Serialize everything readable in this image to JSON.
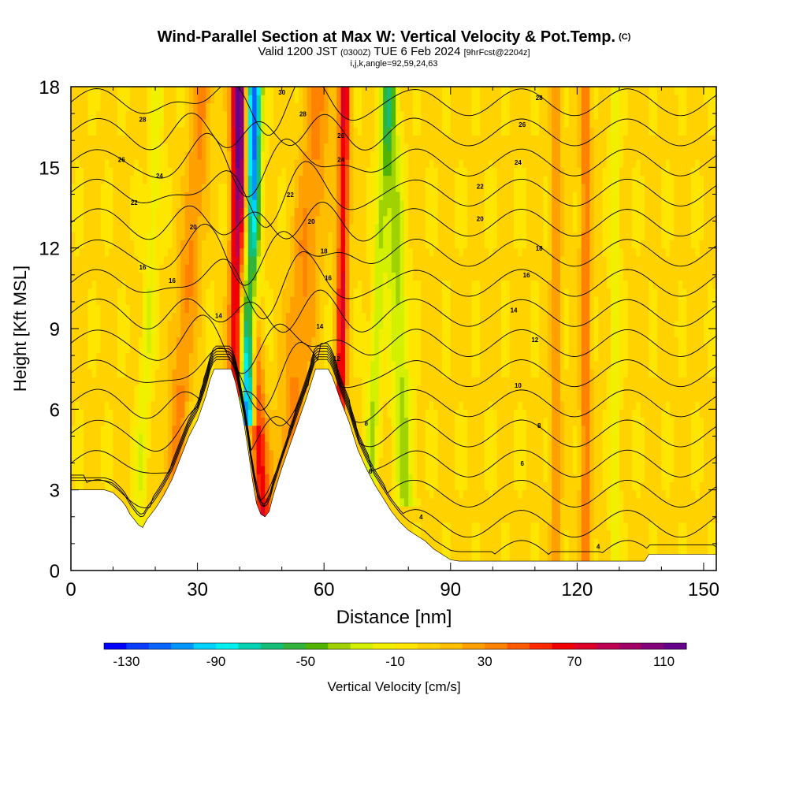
{
  "header": {
    "title": "Wind-Parallel Section at Max W: Vertical Velocity & Pot.Temp.",
    "title_mark": "(C)",
    "valid_prefix": "Valid 1200 JST",
    "valid_utc": "(0300Z)",
    "valid_date": "TUE 6 Feb 2024",
    "forecast": "[9hrFcst@2204z]",
    "indices": "i,j,k,angle=92,59,24,63"
  },
  "chart_data": {
    "type": "heatmap",
    "xlabel": "Distance [nm]",
    "ylabel": "Height [Kft MSL]",
    "xlim": [
      0,
      153
    ],
    "ylim": [
      0,
      18
    ],
    "xticks": [
      "0",
      "30",
      "60",
      "90",
      "120",
      "150"
    ],
    "yticks": [
      "0",
      "3",
      "6",
      "9",
      "12",
      "15",
      "18"
    ],
    "colorbar": {
      "label": "Vertical Velocity [cm/s]",
      "range": [
        -140,
        120
      ],
      "step": 10,
      "tick_labels": [
        "-130",
        "-90",
        "-50",
        "-10",
        "30",
        "70",
        "110"
      ],
      "colors": [
        "#0000ff",
        "#0a3cff",
        "#0a64ff",
        "#0096ff",
        "#00d2ff",
        "#00f0f0",
        "#00d2b4",
        "#14be78",
        "#32b43c",
        "#50b400",
        "#a0d200",
        "#d2f000",
        "#f0f000",
        "#ffe600",
        "#ffd200",
        "#ffbe00",
        "#ffa000",
        "#ff8200",
        "#ff5a00",
        "#ff2800",
        "#f00000",
        "#dc0028",
        "#be0050",
        "#a00064",
        "#820078",
        "#64008c"
      ]
    },
    "terrain_kft": [
      [
        0,
        3.0
      ],
      [
        8,
        3.0
      ],
      [
        10,
        2.9
      ],
      [
        12,
        2.6
      ],
      [
        13,
        2.4
      ],
      [
        14,
        2.1
      ],
      [
        15,
        1.9
      ],
      [
        16,
        1.7
      ],
      [
        17,
        1.6
      ],
      [
        18,
        1.9
      ],
      [
        20,
        2.3
      ],
      [
        22,
        2.8
      ],
      [
        24,
        3.4
      ],
      [
        26,
        4.2
      ],
      [
        28,
        5.0
      ],
      [
        30,
        5.6
      ],
      [
        32,
        6.5
      ],
      [
        33,
        7.1
      ],
      [
        34,
        7.5
      ],
      [
        38,
        7.5
      ],
      [
        39,
        7.0
      ],
      [
        40,
        6.3
      ],
      [
        41,
        5.5
      ],
      [
        42,
        4.5
      ],
      [
        43,
        3.4
      ],
      [
        44,
        2.5
      ],
      [
        45,
        2.1
      ],
      [
        46,
        2.0
      ],
      [
        47,
        2.2
      ],
      [
        48,
        2.8
      ],
      [
        50,
        3.8
      ],
      [
        52,
        4.7
      ],
      [
        54,
        5.6
      ],
      [
        56,
        6.5
      ],
      [
        57,
        7.0
      ],
      [
        58,
        7.5
      ],
      [
        61,
        7.5
      ],
      [
        62,
        7.2
      ],
      [
        64,
        6.3
      ],
      [
        66,
        5.5
      ],
      [
        68,
        4.5
      ],
      [
        70,
        3.8
      ],
      [
        72,
        3.2
      ],
      [
        74,
        2.7
      ],
      [
        76,
        2.2
      ],
      [
        78,
        1.8
      ],
      [
        80,
        1.5
      ],
      [
        82,
        1.3
      ],
      [
        84,
        1.1
      ],
      [
        86,
        0.8
      ],
      [
        88,
        0.6
      ],
      [
        90,
        0.4
      ],
      [
        92,
        0.35
      ],
      [
        104,
        0.35
      ],
      [
        116,
        0.35
      ],
      [
        128,
        0.35
      ],
      [
        136,
        0.35
      ],
      [
        137,
        0.6
      ],
      [
        153,
        0.6
      ]
    ],
    "updraft_bands": [
      {
        "x": 39,
        "slope": 0.06,
        "width": 1.6,
        "value": 75,
        "base_kft": 7.0
      },
      {
        "x": 45.5,
        "slope": -0.35,
        "width": 1.8,
        "value": 65,
        "base_kft": 2.0
      },
      {
        "x": 64,
        "slope": 0.09,
        "width": 1.3,
        "value": 68,
        "base_kft": 7.0
      },
      {
        "x": 51,
        "slope": 0.55,
        "width": 3.5,
        "value": 30,
        "base_kft": 3.0
      },
      {
        "x": 24,
        "slope": 0.5,
        "width": 2.5,
        "value": 30,
        "base_kft": 3.0
      },
      {
        "x": 122,
        "slope": 0.0,
        "width": 1.4,
        "value": 35,
        "base_kft": 0.4
      },
      {
        "x": 115,
        "slope": 0.0,
        "width": 1.2,
        "value": 28,
        "base_kft": 0.4
      }
    ],
    "downdraft_bands": [
      {
        "x": 42,
        "slope": 0.13,
        "width": 1.8,
        "value": -125,
        "base_kft": 7.0
      },
      {
        "x": 79,
        "slope": -0.25,
        "width": 2.2,
        "value": -35,
        "base_kft": 4.0
      },
      {
        "x": 71,
        "slope": 0.3,
        "width": 1.6,
        "value": -30,
        "base_kft": 4.0
      },
      {
        "x": 16,
        "slope": 0.3,
        "width": 1.6,
        "value": -20,
        "base_kft": 1.5
      },
      {
        "x": 129,
        "slope": 0.0,
        "width": 1.2,
        "value": -22,
        "base_kft": 0.4
      }
    ],
    "background_value": 2,
    "isentropes": {
      "levels": [
        2,
        4,
        6,
        8,
        10,
        12,
        14,
        16,
        18,
        20,
        22,
        24,
        26,
        28,
        30,
        32
      ],
      "labels": [
        {
          "text": "4",
          "x": 83,
          "y": 1.9
        },
        {
          "text": "4",
          "x": 125,
          "y": 0.8
        },
        {
          "text": "6",
          "x": 71,
          "y": 3.6
        },
        {
          "text": "6",
          "x": 107,
          "y": 3.9
        },
        {
          "text": "8",
          "x": 70,
          "y": 5.4
        },
        {
          "text": "8",
          "x": 111,
          "y": 5.3
        },
        {
          "text": "10",
          "x": 106,
          "y": 6.8
        },
        {
          "text": "12",
          "x": 63,
          "y": 7.8
        },
        {
          "text": "12",
          "x": 110,
          "y": 8.5
        },
        {
          "text": "14",
          "x": 35,
          "y": 9.4
        },
        {
          "text": "14",
          "x": 59,
          "y": 9.0
        },
        {
          "text": "14",
          "x": 105,
          "y": 9.6
        },
        {
          "text": "16",
          "x": 24,
          "y": 10.7
        },
        {
          "text": "16",
          "x": 61,
          "y": 10.8
        },
        {
          "text": "16",
          "x": 108,
          "y": 10.9
        },
        {
          "text": "16",
          "x": 17,
          "y": 11.2
        },
        {
          "text": "18",
          "x": 60,
          "y": 11.8
        },
        {
          "text": "18",
          "x": 111,
          "y": 11.9
        },
        {
          "text": "20",
          "x": 29,
          "y": 12.7
        },
        {
          "text": "20",
          "x": 57,
          "y": 12.9
        },
        {
          "text": "20",
          "x": 97,
          "y": 13.0
        },
        {
          "text": "22",
          "x": 15,
          "y": 13.6
        },
        {
          "text": "22",
          "x": 52,
          "y": 13.9
        },
        {
          "text": "22",
          "x": 97,
          "y": 14.2
        },
        {
          "text": "24",
          "x": 21,
          "y": 14.6
        },
        {
          "text": "24",
          "x": 64,
          "y": 15.2
        },
        {
          "text": "24",
          "x": 106,
          "y": 15.1
        },
        {
          "text": "26",
          "x": 12,
          "y": 15.2
        },
        {
          "text": "26",
          "x": 64,
          "y": 16.1
        },
        {
          "text": "26",
          "x": 107,
          "y": 16.5
        },
        {
          "text": "28",
          "x": 17,
          "y": 16.7
        },
        {
          "text": "28",
          "x": 55,
          "y": 16.9
        },
        {
          "text": "28",
          "x": 111,
          "y": 17.5
        },
        {
          "text": "30",
          "x": 50,
          "y": 17.7
        }
      ]
    }
  }
}
